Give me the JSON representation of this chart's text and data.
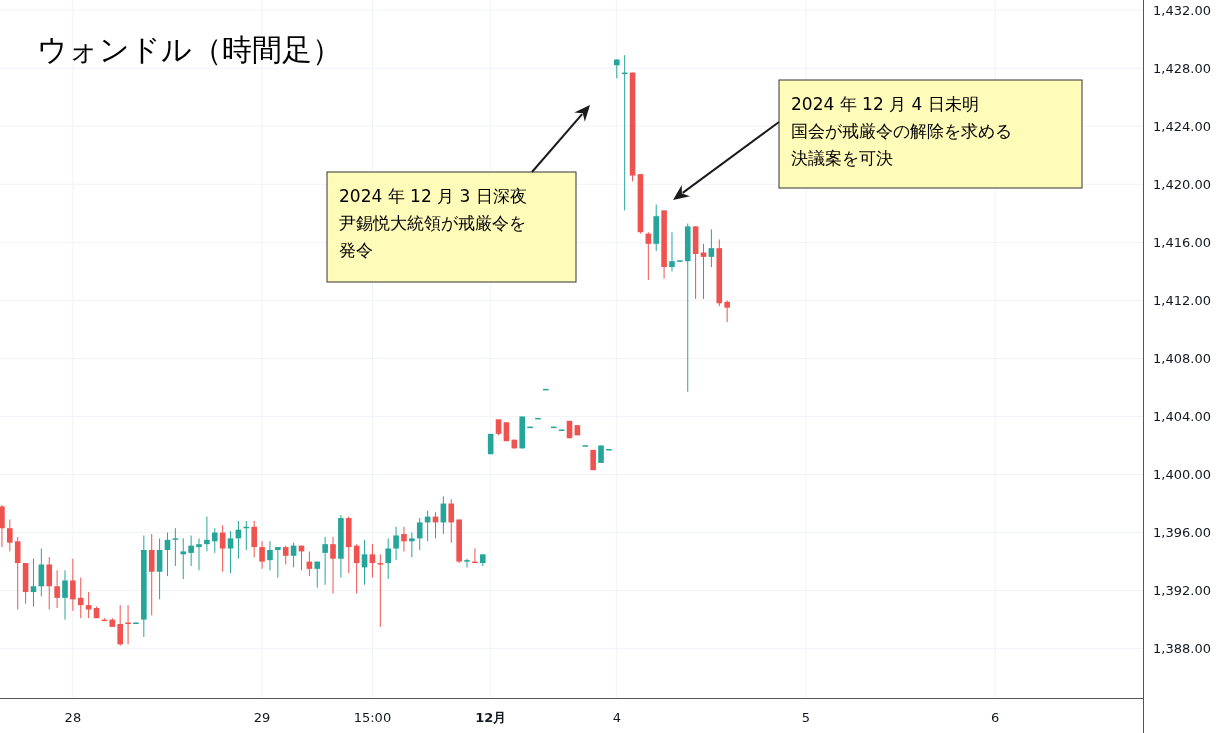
{
  "chart_data": {
    "type": "candlestick",
    "title": "ウォンドル（時間足）",
    "categories": [
      null,
      null,
      null,
      null,
      null,
      null,
      null,
      null,
      null,
      "28",
      null,
      null,
      null,
      null,
      null,
      null,
      null,
      null,
      null,
      null,
      null,
      null,
      null,
      null,
      null,
      null,
      null,
      null,
      null,
      null,
      null,
      null,
      null,
      "29",
      null,
      null,
      null,
      null,
      null,
      null,
      null,
      null,
      null,
      null,
      null,
      null,
      null,
      "15:00",
      null,
      null,
      null,
      null,
      null,
      null,
      null,
      null,
      null,
      null,
      null,
      null,
      null,
      null,
      "12月",
      null,
      null,
      null,
      null,
      null,
      null,
      null,
      null,
      null,
      null,
      null,
      null,
      null,
      null,
      null,
      "4",
      null,
      null,
      null,
      null,
      null,
      null,
      null,
      null,
      null,
      null,
      null,
      null,
      null,
      null,
      null,
      null,
      null,
      null,
      null,
      null,
      null,
      null,
      null,
      "5",
      null,
      null,
      null,
      null,
      null,
      null,
      null,
      null,
      null,
      null,
      null,
      null,
      null,
      null,
      null,
      null,
      null,
      null,
      null,
      null,
      null,
      null,
      null,
      "6",
      null,
      null,
      null,
      null,
      null,
      null,
      null,
      null,
      null,
      null,
      null,
      null,
      null,
      null,
      null,
      null,
      null,
      null
    ],
    "ohlc": [
      [
        1397.8,
        1397.9,
        1395.0,
        1396.3
      ],
      [
        1396.3,
        1396.9,
        1394.7,
        1395.3
      ],
      [
        1395.4,
        1395.7,
        1390.7,
        1393.9
      ],
      [
        1393.9,
        1393.9,
        1391.1,
        1391.9
      ],
      [
        1391.9,
        1394.2,
        1390.9,
        1392.3
      ],
      [
        1392.3,
        1394.9,
        1391.6,
        1393.8
      ],
      [
        1393.8,
        1394.3,
        1390.7,
        1392.3
      ],
      [
        1392.3,
        1393.4,
        1390.8,
        1391.5
      ],
      [
        1391.5,
        1393.4,
        1390.0,
        1392.7
      ],
      [
        1392.7,
        1394.2,
        1390.6,
        1391.4
      ],
      [
        1391.5,
        1392.9,
        1390.1,
        1391.0
      ],
      [
        1391.0,
        1391.9,
        1390.1,
        1390.7
      ],
      [
        1390.8,
        1390.9,
        1390.1,
        1390.1
      ],
      [
        1390.0,
        1390.1,
        1389.9,
        1389.9
      ],
      [
        1390.0,
        1390.1,
        1389.5,
        1389.5
      ],
      [
        1389.7,
        1391.0,
        1388.2,
        1388.3
      ],
      [
        1389.8,
        1391.0,
        1388.3,
        1389.7
      ],
      [
        1389.7,
        1389.8,
        1389.7,
        1389.8
      ],
      [
        1390.0,
        1395.8,
        1388.8,
        1394.8
      ],
      [
        1394.8,
        1395.9,
        1390.3,
        1393.3
      ],
      [
        1393.3,
        1395.6,
        1391.4,
        1394.8
      ],
      [
        1394.8,
        1396.0,
        1393.0,
        1395.5
      ],
      [
        1395.5,
        1396.3,
        1393.7,
        1395.6
      ],
      [
        1394.5,
        1395.6,
        1392.8,
        1394.7
      ],
      [
        1394.6,
        1395.8,
        1393.7,
        1395.1
      ],
      [
        1395.0,
        1395.6,
        1393.4,
        1395.2
      ],
      [
        1395.2,
        1397.1,
        1394.7,
        1395.5
      ],
      [
        1395.4,
        1396.3,
        1394.6,
        1396.0
      ],
      [
        1396.0,
        1396.5,
        1393.3,
        1394.9
      ],
      [
        1394.9,
        1396.1,
        1393.2,
        1395.6
      ],
      [
        1395.6,
        1396.8,
        1394.2,
        1396.2
      ],
      [
        1396.3,
        1396.8,
        1394.8,
        1396.4
      ],
      [
        1396.4,
        1396.8,
        1394.3,
        1395.0
      ],
      [
        1395.0,
        1395.4,
        1393.5,
        1394.0
      ],
      [
        1394.1,
        1395.4,
        1393.4,
        1394.8
      ],
      [
        1394.8,
        1395.0,
        1392.9,
        1395.0
      ],
      [
        1395.0,
        1395.1,
        1393.8,
        1394.4
      ],
      [
        1394.4,
        1395.3,
        1393.6,
        1395.1
      ],
      [
        1395.1,
        1395.1,
        1393.4,
        1394.7
      ],
      [
        1394.0,
        1394.7,
        1393.0,
        1393.5
      ],
      [
        1393.5,
        1394.0,
        1392.2,
        1394.0
      ],
      [
        1394.6,
        1395.7,
        1392.4,
        1395.2
      ],
      [
        1395.2,
        1395.7,
        1391.8,
        1394.2
      ],
      [
        1394.2,
        1397.2,
        1392.9,
        1397.0
      ],
      [
        1397.0,
        1397.1,
        1393.2,
        1395.0
      ],
      [
        1395.1,
        1395.2,
        1391.8,
        1393.9
      ],
      [
        1393.6,
        1395.5,
        1392.4,
        1394.5
      ],
      [
        1394.5,
        1395.2,
        1392.9,
        1393.9
      ],
      [
        1393.9,
        1394.5,
        1389.5,
        1393.8
      ],
      [
        1393.9,
        1395.6,
        1392.8,
        1394.9
      ],
      [
        1394.9,
        1396.4,
        1394.1,
        1395.8
      ],
      [
        1395.9,
        1396.4,
        1394.7,
        1395.4
      ],
      [
        1395.4,
        1396.0,
        1394.3,
        1395.6
      ],
      [
        1395.6,
        1397.0,
        1394.8,
        1396.7
      ],
      [
        1396.7,
        1397.5,
        1395.4,
        1397.1
      ],
      [
        1397.1,
        1397.4,
        1395.6,
        1396.7
      ],
      [
        1396.7,
        1398.5,
        1395.9,
        1398.0
      ],
      [
        1398.0,
        1398.3,
        1395.3,
        1396.7
      ],
      [
        1396.9,
        1396.9,
        1393.9,
        1394.0
      ],
      [
        1394.0,
        1394.2,
        1393.6,
        1394.1
      ],
      [
        1394.0,
        1394.9,
        1393.9,
        1393.9
      ],
      [
        1393.9,
        1394.5,
        1393.7,
        1394.5
      ],
      [
        1401.4,
        1402.8,
        1401.4,
        1402.8
      ],
      [
        1403.8,
        1403.8,
        1402.7,
        1402.8
      ],
      [
        1403.6,
        1403.6,
        1402.3,
        1402.3
      ],
      [
        1402.4,
        1402.4,
        1401.8,
        1401.8
      ],
      [
        1401.8,
        1404.0,
        1401.8,
        1404.0
      ],
      [
        1403.25,
        1403.3,
        1403.25,
        1403.3
      ],
      [
        1403.87,
        1403.9,
        1403.87,
        1403.9
      ],
      [
        1405.87,
        1405.9,
        1405.87,
        1405.9
      ],
      [
        1403.25,
        1403.3,
        1403.25,
        1403.3
      ],
      [
        1403.0,
        1403.1,
        1403.0,
        1403.1
      ],
      [
        1403.7,
        1403.7,
        1402.5,
        1402.5
      ],
      [
        1403.4,
        1403.4,
        1402.7,
        1402.7
      ],
      [
        1402.0,
        1402.02,
        1402.0,
        1402.02
      ],
      [
        1401.7,
        1401.7,
        1400.3,
        1400.3
      ],
      [
        1400.8,
        1402.0,
        1400.8,
        1402.0
      ],
      [
        1401.74,
        1401.76,
        1401.74,
        1401.76
      ],
      [
        1428.2,
        1428.6,
        1427.3,
        1428.6
      ],
      [
        1427.6,
        1428.9,
        1418.2,
        1427.7
      ],
      [
        1427.7,
        1427.7,
        1420.2,
        1420.6
      ],
      [
        1420.7,
        1420.7,
        1416.6,
        1416.7
      ],
      [
        1416.6,
        1416.7,
        1413.4,
        1415.9
      ],
      [
        1415.9,
        1418.6,
        1415.4,
        1417.8
      ],
      [
        1418.2,
        1418.2,
        1413.5,
        1414.3
      ],
      [
        1414.3,
        1416.7,
        1414.0,
        1414.7
      ],
      [
        1414.71,
        1414.76,
        1414.71,
        1414.76
      ],
      [
        1414.7,
        1417.3,
        1405.7,
        1417.1
      ],
      [
        1417.1,
        1417.1,
        1412.1,
        1415.2
      ],
      [
        1415.3,
        1415.9,
        1412.1,
        1415.0
      ],
      [
        1415.0,
        1416.9,
        1414.3,
        1415.6
      ],
      [
        1415.6,
        1416.2,
        1411.6,
        1411.8
      ],
      [
        1411.9,
        1412.0,
        1410.5,
        1411.5
      ],
      null,
      null,
      null,
      null,
      null,
      null,
      null,
      null,
      null,
      null,
      null,
      null,
      null,
      null,
      null,
      null,
      null,
      null,
      null,
      null,
      null,
      null,
      null,
      null,
      null,
      null,
      null,
      null,
      null,
      null,
      null,
      null,
      null,
      null,
      null,
      null,
      null,
      null,
      null,
      null,
      null,
      null,
      null,
      null,
      null,
      null,
      null,
      null,
      null,
      null,
      null,
      null
    ],
    "colors": [
      "#ef5350",
      "#ef5350",
      "#ef5350",
      "#ef5350",
      "#26a69a",
      "#26a69a",
      "#ef5350",
      "#ef5350",
      "#26a69a",
      "#ef5350",
      "#ef5350",
      "#ef5350",
      "#ef5350",
      "#ef5350",
      "#ef5350",
      "#ef5350",
      "#ef5350",
      "#26a69a",
      "#26a69a",
      "#ef5350",
      "#26a69a",
      "#26a69a",
      "#26a69a",
      "#26a69a",
      "#26a69a",
      "#26a69a",
      "#26a69a",
      "#26a69a",
      "#ef5350",
      "#26a69a",
      "#26a69a",
      "#26a69a",
      "#ef5350",
      "#ef5350",
      "#26a69a",
      "#26a69a",
      "#ef5350",
      "#26a69a",
      "#ef5350",
      "#ef5350",
      "#26a69a",
      "#26a69a",
      "#ef5350",
      "#26a69a",
      "#ef5350",
      "#ef5350",
      "#26a69a",
      "#ef5350",
      "#ef5350",
      "#26a69a",
      "#26a69a",
      "#ef5350",
      "#26a69a",
      "#26a69a",
      "#26a69a",
      "#ef5350",
      "#26a69a",
      "#ef5350",
      "#ef5350",
      "#26a69a",
      "#ef5350",
      "#26a69a",
      "#26a69a",
      "#ef5350",
      "#ef5350",
      "#ef5350",
      "#26a69a",
      "#26a69a",
      "#26a69a",
      "#26a69a",
      "#26a69a",
      "#26a69a",
      "#ef5350",
      "#ef5350",
      "#26a69a",
      "#ef5350",
      "#26a69a",
      "#26a69a",
      "#26a69a",
      "#26a69a",
      "#ef5350",
      "#ef5350",
      "#ef5350",
      "#26a69a",
      "#ef5350",
      "#26a69a",
      "#26a69a",
      "#26a69a",
      "#ef5350",
      "#ef5350",
      "#26a69a",
      "#ef5350",
      "#ef5350",
      null,
      null,
      null,
      null,
      null,
      null,
      null,
      null,
      null,
      null,
      null,
      null,
      null,
      null,
      null,
      null,
      null,
      null,
      null,
      null,
      null,
      null,
      null,
      null,
      null,
      null,
      null,
      null,
      null,
      null,
      null,
      null,
      null,
      null,
      null,
      null,
      null,
      null,
      null,
      null,
      null,
      null,
      null,
      null,
      null,
      null,
      null,
      null,
      null,
      null,
      null,
      null
    ],
    "ylim": [
      1384.6,
      1432.7
    ],
    "yticks": [
      {
        "value": 1388,
        "label": "1,388.00"
      },
      {
        "value": 1392,
        "label": "1,392.00"
      },
      {
        "value": 1396,
        "label": "1,396.00"
      },
      {
        "value": 1400,
        "label": "1,400.00"
      },
      {
        "value": 1404,
        "label": "1,404.00"
      },
      {
        "value": 1408,
        "label": "1,408.00"
      },
      {
        "value": 1412,
        "label": "1,412.00"
      },
      {
        "value": 1416,
        "label": "1,416.00"
      },
      {
        "value": 1420,
        "label": "1,420.00"
      },
      {
        "value": 1424,
        "label": "1,424.00"
      },
      {
        "value": 1428,
        "label": "1,428.00"
      },
      {
        "value": 1432,
        "label": "1,432.00"
      }
    ],
    "grid": true,
    "annotations": [
      "2024 年 12 月 3 日深夜尹錫悦大統領が戒厳令を発令",
      "2024 年 12 月 4 日未明国会が戒厳令の解除を求める決議案を可決"
    ]
  }
}
